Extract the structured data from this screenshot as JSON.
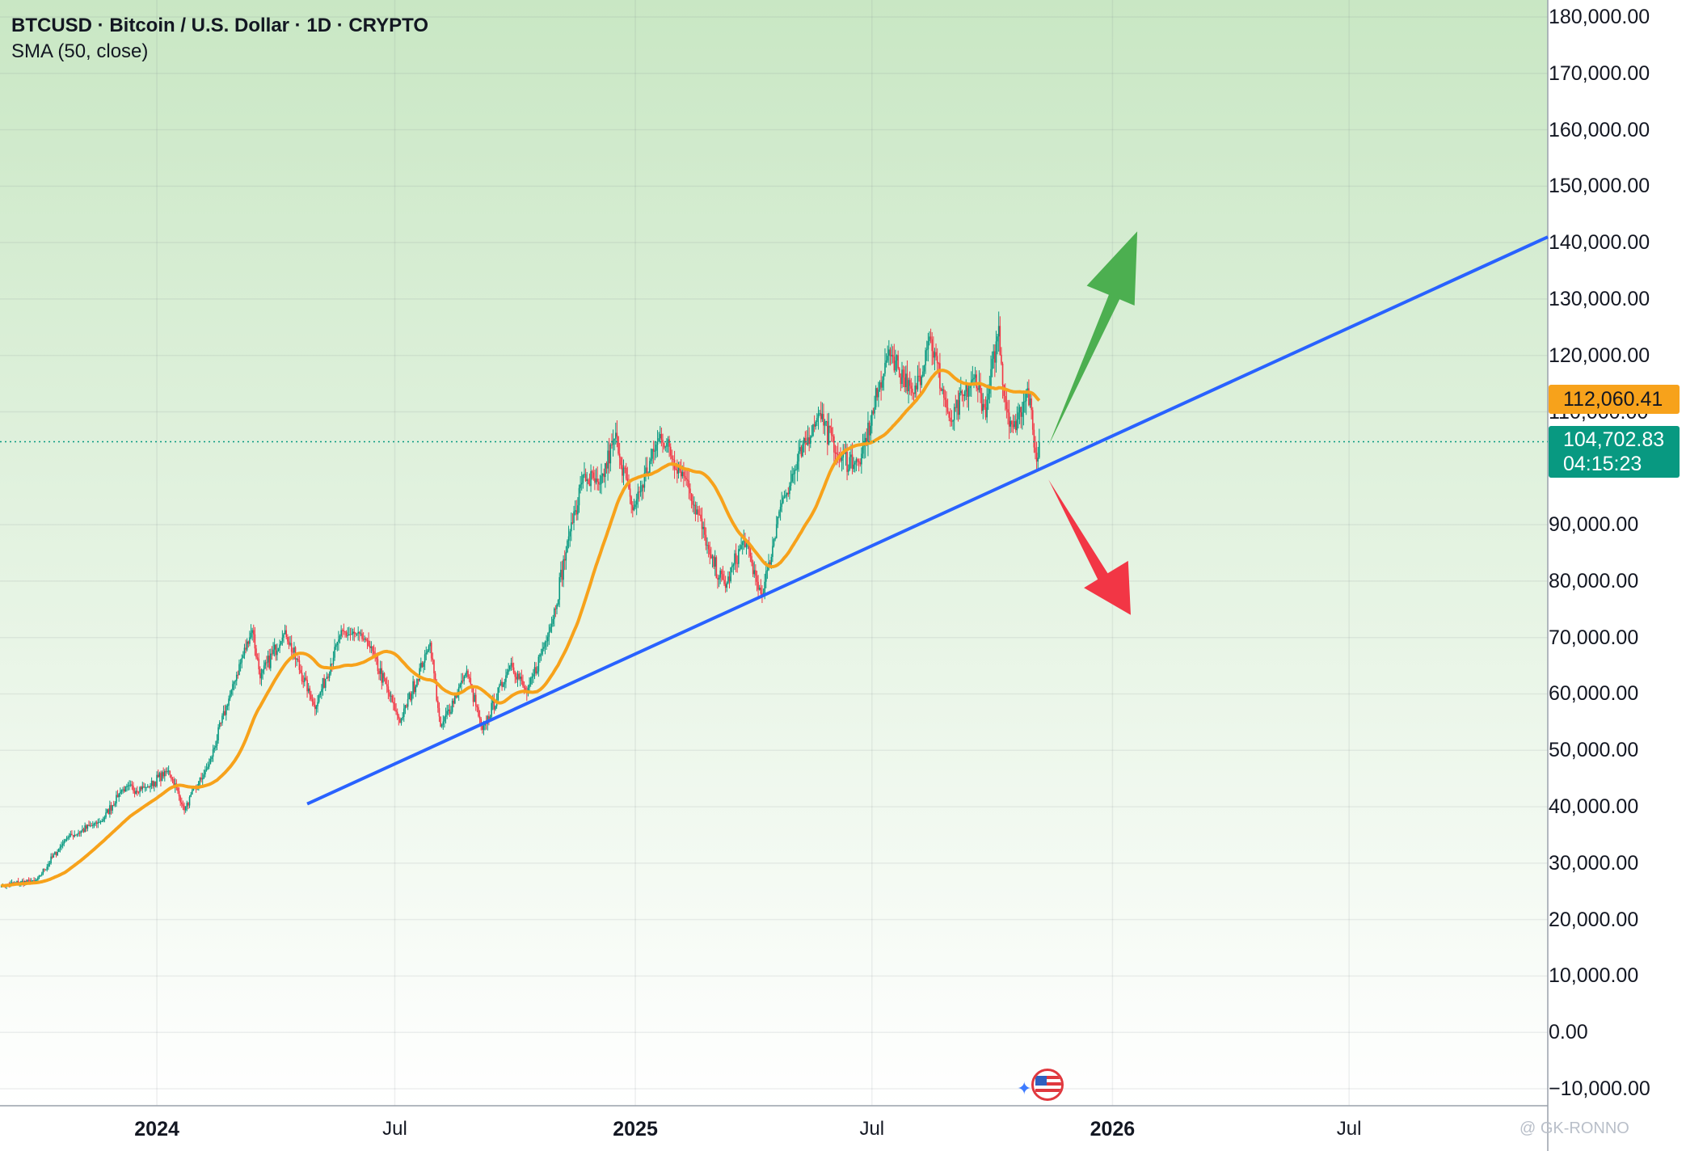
{
  "header": {
    "title": "BTCUSD · Bitcoin / U.S. Dollar · 1D · CRYPTO",
    "indicator": "SMA (50, close)"
  },
  "price_axis": {
    "labels": [
      "180,000.00",
      "170,000.00",
      "160,000.00",
      "150,000.00",
      "140,000.00",
      "130,000.00",
      "120,000.00",
      "110,000.00",
      "90,000.00",
      "80,000.00",
      "70,000.00",
      "60,000.00",
      "50,000.00",
      "40,000.00",
      "30,000.00",
      "20,000.00",
      "10,000.00",
      "0.00",
      "−10,000.00"
    ]
  },
  "time_axis": {
    "labels": [
      {
        "text": "2024",
        "year": true
      },
      {
        "text": "Jul",
        "year": false
      },
      {
        "text": "2025",
        "year": true
      },
      {
        "text": "Jul",
        "year": false
      },
      {
        "text": "2026",
        "year": true
      },
      {
        "text": "Jul",
        "year": false
      }
    ]
  },
  "tags": {
    "sma_value": "112,060.41",
    "last_price": "104,702.83",
    "countdown": "04:15:23"
  },
  "watermark": "@ GK-RONNO",
  "colors": {
    "up": "#089981",
    "down": "#f23645",
    "sma": "#f7a21b",
    "trendline": "#2962ff",
    "arrow_up": "#4caf50",
    "arrow_down": "#f23645",
    "background_top": "#c9e7c4",
    "background_bottom": "#ffffff"
  },
  "chart_data": {
    "type": "candlestick",
    "symbol": "BTCUSD",
    "interval": "1D",
    "ylim": [
      -13000,
      183000
    ],
    "x_range": [
      "2023-09-03",
      "2026-11-30"
    ],
    "close_anchors": [
      {
        "date": "2023-09-04",
        "value": 26000
      },
      {
        "date": "2023-10-01",
        "value": 27000
      },
      {
        "date": "2023-10-24",
        "value": 34500
      },
      {
        "date": "2023-11-20",
        "value": 37500
      },
      {
        "date": "2023-12-05",
        "value": 43000
      },
      {
        "date": "2023-12-25",
        "value": 43500
      },
      {
        "date": "2024-01-10",
        "value": 46500
      },
      {
        "date": "2024-01-22",
        "value": 39500
      },
      {
        "date": "2024-02-10",
        "value": 47500
      },
      {
        "date": "2024-02-28",
        "value": 61500
      },
      {
        "date": "2024-03-14",
        "value": 71500
      },
      {
        "date": "2024-03-20",
        "value": 63000
      },
      {
        "date": "2024-04-08",
        "value": 71000
      },
      {
        "date": "2024-05-01",
        "value": 57500
      },
      {
        "date": "2024-05-21",
        "value": 71000
      },
      {
        "date": "2024-06-10",
        "value": 69500
      },
      {
        "date": "2024-07-05",
        "value": 55000
      },
      {
        "date": "2024-07-28",
        "value": 69000
      },
      {
        "date": "2024-08-05",
        "value": 54000
      },
      {
        "date": "2024-08-25",
        "value": 64000
      },
      {
        "date": "2024-09-06",
        "value": 53500
      },
      {
        "date": "2024-09-28",
        "value": 65500
      },
      {
        "date": "2024-10-10",
        "value": 60000
      },
      {
        "date": "2024-10-29",
        "value": 72500
      },
      {
        "date": "2024-11-13",
        "value": 90000
      },
      {
        "date": "2024-11-22",
        "value": 98500
      },
      {
        "date": "2024-12-05",
        "value": 97000
      },
      {
        "date": "2024-12-17",
        "value": 106000
      },
      {
        "date": "2024-12-30",
        "value": 92500
      },
      {
        "date": "2025-01-20",
        "value": 106000
      },
      {
        "date": "2025-02-10",
        "value": 97500
      },
      {
        "date": "2025-02-28",
        "value": 84000
      },
      {
        "date": "2025-03-11",
        "value": 79000
      },
      {
        "date": "2025-03-25",
        "value": 87500
      },
      {
        "date": "2025-04-08",
        "value": 77000
      },
      {
        "date": "2025-04-22",
        "value": 93500
      },
      {
        "date": "2025-05-22",
        "value": 110000
      },
      {
        "date": "2025-06-05",
        "value": 102000
      },
      {
        "date": "2025-06-22",
        "value": 101000
      },
      {
        "date": "2025-07-14",
        "value": 121000
      },
      {
        "date": "2025-08-02",
        "value": 113000
      },
      {
        "date": "2025-08-14",
        "value": 123500
      },
      {
        "date": "2025-08-30",
        "value": 108000
      },
      {
        "date": "2025-09-18",
        "value": 116500
      },
      {
        "date": "2025-09-26",
        "value": 109500
      },
      {
        "date": "2025-10-06",
        "value": 125000
      },
      {
        "date": "2025-10-10",
        "value": 113000
      },
      {
        "date": "2025-10-17",
        "value": 107000
      },
      {
        "date": "2025-10-28",
        "value": 114000
      },
      {
        "date": "2025-11-04",
        "value": 101000
      },
      {
        "date": "2025-11-06",
        "value": 104702.83
      }
    ],
    "sma": {
      "period": 50,
      "last_value": 112060.41
    },
    "last_price": 104702.83,
    "trendline": {
      "start": {
        "date": "2024-04-25",
        "value": 40500
      },
      "end": {
        "date": "2026-11-30",
        "value": 141000
      }
    },
    "annotations": [
      {
        "type": "arrow",
        "direction": "up",
        "from": {
          "date": "2025-11-13",
          "value": 104000
        },
        "to": {
          "date": "2026-01-20",
          "value": 142000
        }
      },
      {
        "type": "arrow",
        "direction": "down",
        "from": {
          "date": "2025-11-13",
          "value": 98000
        },
        "to": {
          "date": "2026-01-15",
          "value": 74000
        }
      }
    ]
  }
}
